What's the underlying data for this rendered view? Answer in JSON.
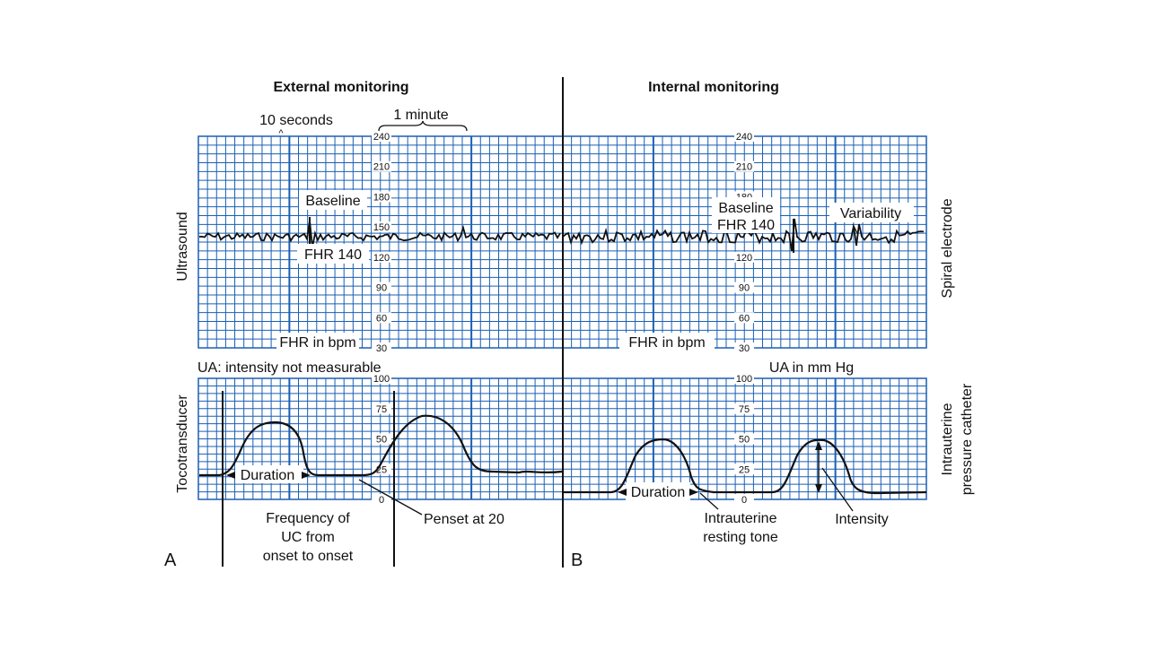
{
  "titles": {
    "external": "External monitoring",
    "internal": "Internal monitoring"
  },
  "panel_letters": {
    "a": "A",
    "b": "B"
  },
  "side_labels": {
    "ultrasound": "Ultrasound",
    "tocotransducer": "Tocotransducer",
    "spiral_electrode": "Spiral electrode",
    "iupc_line1": "Intrauterine",
    "iupc_line2": "pressure catheter"
  },
  "scale_labels": {
    "ten_seconds": "10 seconds",
    "ten_seconds_marker": "^",
    "one_minute": "1 minute"
  },
  "fhr_axis": {
    "ticks": [
      "240",
      "210",
      "180",
      "150",
      "120",
      "90",
      "60",
      "30"
    ],
    "unit_label": "FHR in bpm"
  },
  "ua_axis": {
    "ticks": [
      "100",
      "75",
      "50",
      "25",
      "0"
    ]
  },
  "annotations": {
    "baseline_left": "Baseline",
    "fhr140_left": "FHR 140",
    "baseline_right": "Baseline",
    "fhr140_right": "FHR 140",
    "variability": "Variability",
    "ua_external": "UA: intensity not measurable",
    "ua_internal": "UA in mm Hg",
    "duration_left": "Duration",
    "duration_right": "Duration",
    "frequency_1": "Frequency of",
    "frequency_2": "UC from",
    "frequency_3": "onset to onset",
    "penset": "Penset at 20",
    "resting_1": "Intrauterine",
    "resting_2": "resting tone",
    "intensity": "Intensity"
  },
  "colors": {
    "grid": "#1a5fb4",
    "trace": "#111111"
  }
}
